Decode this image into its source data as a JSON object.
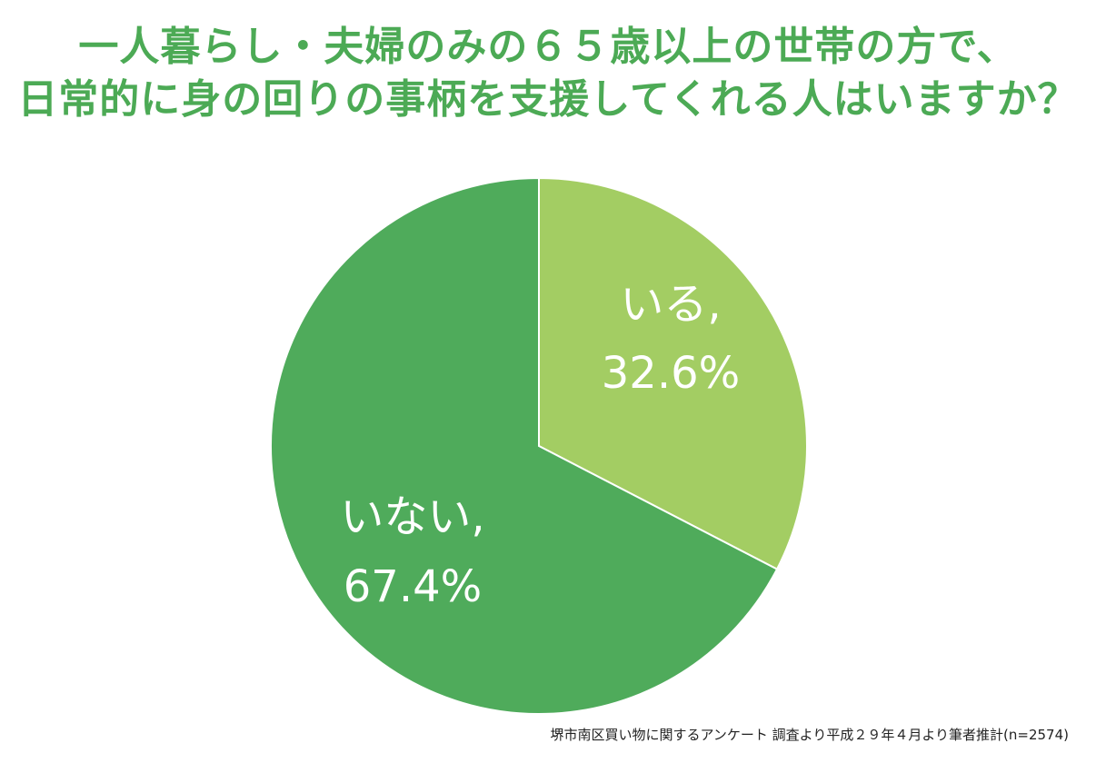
{
  "chart_data": {
    "type": "pie",
    "title_lines": [
      "一人暮らし・夫婦のみの６５歳以上の世帯の方で、",
      "日常的に身の回りの事柄を支援してくれる人はいますか？"
    ],
    "slices": [
      {
        "label": "いる,",
        "value_label": "32.6%",
        "value": 32.6,
        "color": "#a3cd63"
      },
      {
        "label": "いない,",
        "value_label": "67.4%",
        "value": 67.4,
        "color": "#4fab5b"
      }
    ],
    "start": "12 o'clock",
    "direction": "clockwise",
    "source": "堺市南区買い物に関するアンケート 調査より平成２９年４月より筆者推計(n=2574)"
  }
}
